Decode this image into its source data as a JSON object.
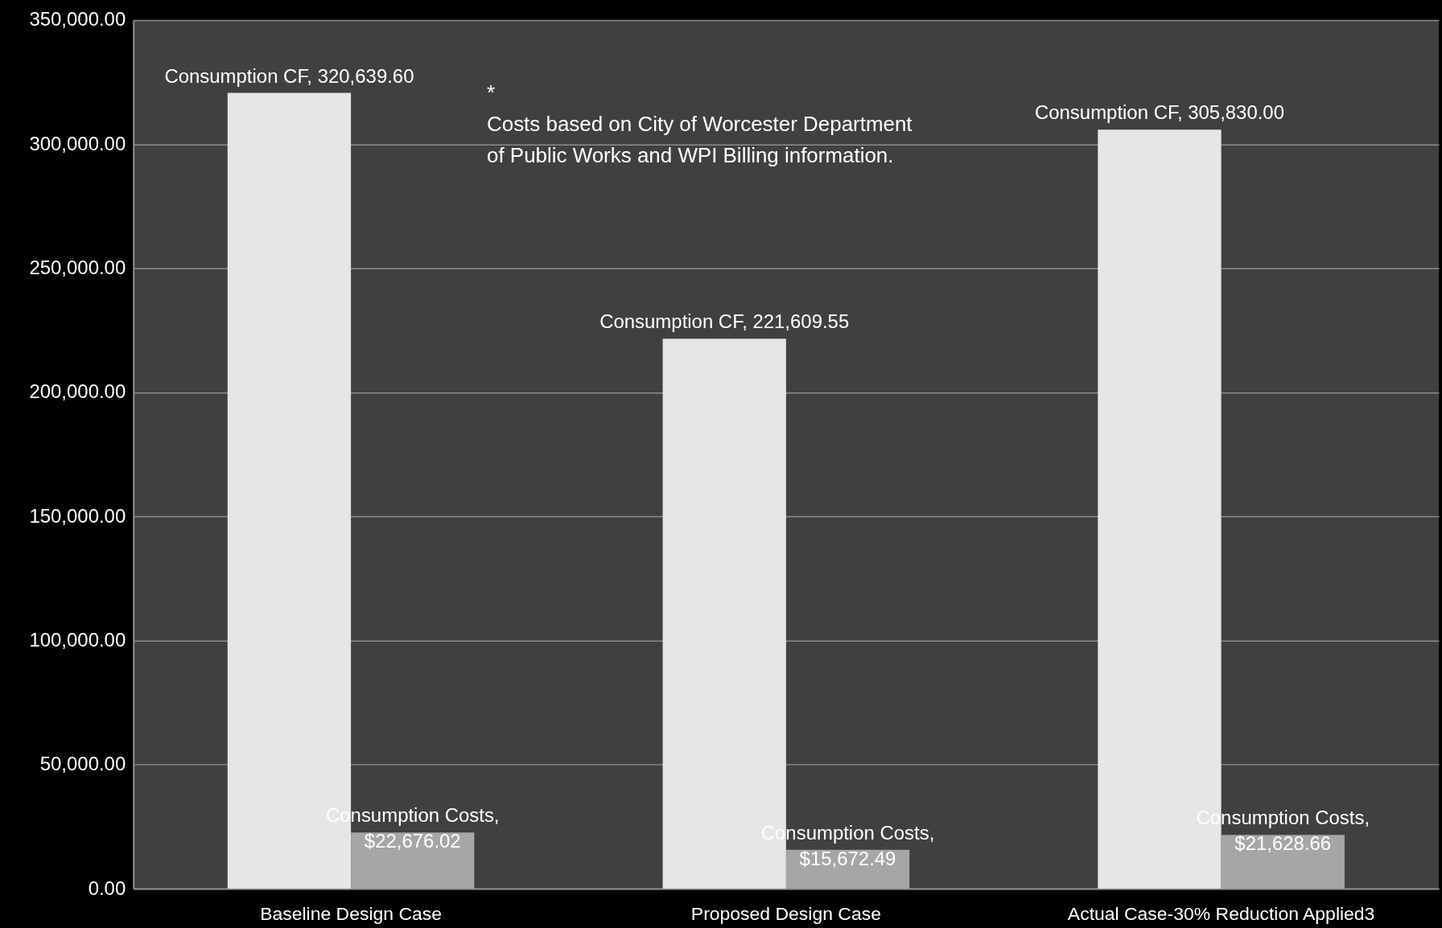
{
  "chart_data": {
    "type": "bar",
    "categories": [
      "Baseline Design Case",
      "Proposed Design Case",
      "Actual Case-30% Reduction Applied3"
    ],
    "series": [
      {
        "color": "#e6e6e6",
        "values": [
          320639.6,
          221609.55,
          305830.0
        ],
        "value_labels": [
          "Consumption CF, 320,639.60",
          "Consumption CF, 221,609.55",
          "Consumption CF, 305,830.00"
        ]
      },
      {
        "color": "#a6a6a6",
        "values": [
          22676.02,
          15672.49,
          21628.66
        ],
        "value_labels": [
          "Consumption Costs, $22,676.02",
          "Consumption Costs, $15,672.49",
          "Consumption Costs, $21,628.66"
        ]
      }
    ],
    "ylim": [
      0,
      350000
    ],
    "yticks": [
      {
        "value": 0,
        "label": "0.00"
      },
      {
        "value": 50000,
        "label": "50,000.00"
      },
      {
        "value": 100000,
        "label": "100,000.00"
      },
      {
        "value": 150000,
        "label": "150,000.00"
      },
      {
        "value": 200000,
        "label": "200,000.00"
      },
      {
        "value": 250000,
        "label": "250,000.00"
      },
      {
        "value": 300000,
        "label": "300,000.00"
      },
      {
        "value": 350000,
        "label": "350,000.00"
      }
    ],
    "grid": "y",
    "legend": false,
    "annotations": [
      "*\nCosts based on City of Worcester Department\nof Public Works  and  WPI Billing information."
    ]
  }
}
